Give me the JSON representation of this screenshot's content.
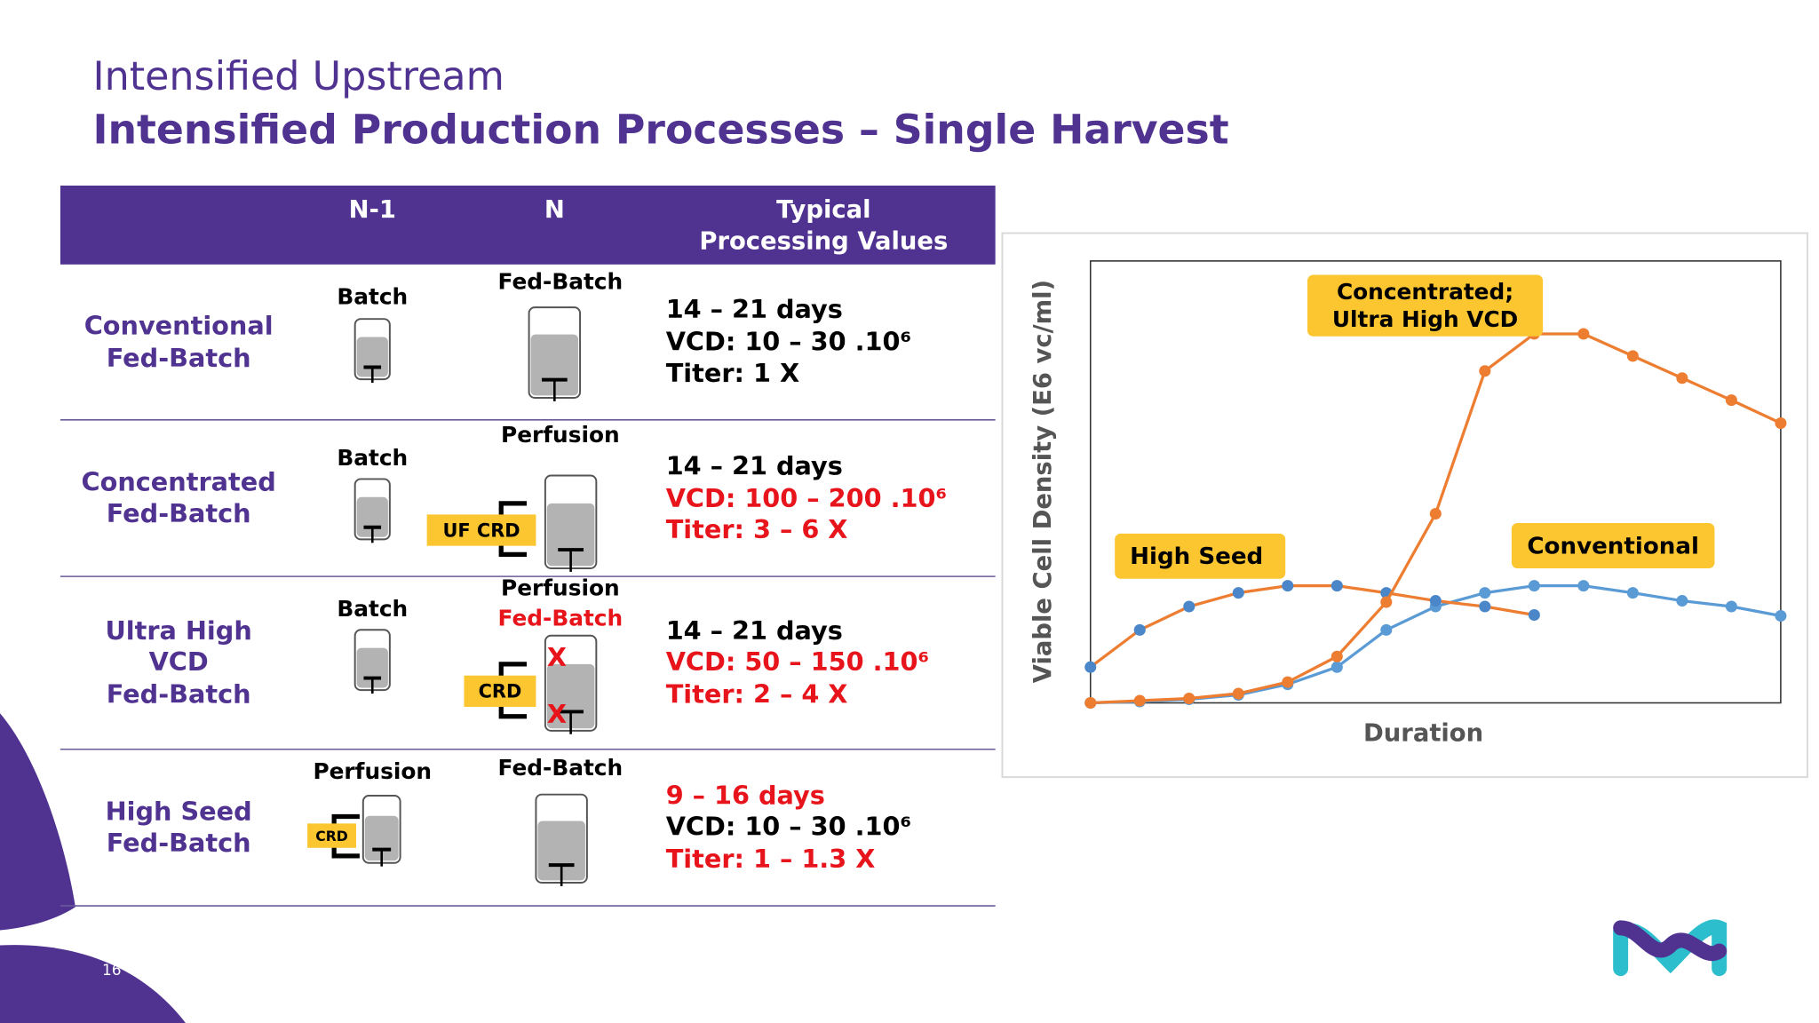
{
  "header": {
    "section": "Intensified Upstream",
    "title": "Intensified Production Processes – Single Harvest"
  },
  "table": {
    "columns": [
      "N-1",
      "N"
    ],
    "typical_header": [
      "Typical",
      "Processing Values"
    ],
    "rows": [
      {
        "label": [
          "Conventional",
          "Fed-Batch"
        ],
        "n1": [
          {
            "text": "Batch",
            "color": "#000000"
          }
        ],
        "n": [
          {
            "text": "Fed-Batch",
            "color": "#000000"
          }
        ],
        "values": [
          {
            "text": "14 – 21 days",
            "color": "#000000"
          },
          {
            "text": "VCD: 10 – 30 .10⁶",
            "color": "#000000"
          },
          {
            "text": "Titer: 1 X",
            "color": "#000000"
          }
        ]
      },
      {
        "label": [
          "Concentrated",
          "Fed-Batch"
        ],
        "n1": [
          {
            "text": "Batch",
            "color": "#000000"
          }
        ],
        "n": [
          {
            "text": "Perfusion",
            "color": "#000000"
          }
        ],
        "n_tag": "UF CRD",
        "values": [
          {
            "text": "14 – 21 days",
            "color": "#000000"
          },
          {
            "text": "VCD: 100 – 200 .10⁶",
            "color": "#e8141b"
          },
          {
            "text": "Titer: 3 – 6 X",
            "color": "#e8141b"
          }
        ]
      },
      {
        "label": [
          "Ultra High",
          "VCD",
          "Fed-Batch"
        ],
        "n1": [
          {
            "text": "Batch",
            "color": "#000000"
          }
        ],
        "n": [
          {
            "text": "Perfusion",
            "color": "#000000"
          },
          {
            "text": "Fed-Batch",
            "color": "#e8141b"
          }
        ],
        "n_tag": "CRD",
        "n_marks": [
          "X",
          "X"
        ],
        "values": [
          {
            "text": "14 – 21 days",
            "color": "#000000"
          },
          {
            "text": "VCD: 50 – 150 .10⁶",
            "color": "#e8141b"
          },
          {
            "text": "Titer: 2 – 4 X",
            "color": "#e8141b"
          }
        ]
      },
      {
        "label": [
          "High Seed",
          "Fed-Batch"
        ],
        "n1": [
          {
            "text": "Perfusion",
            "color": "#000000"
          }
        ],
        "n1_tag": "CRD",
        "n": [
          {
            "text": "Fed-Batch",
            "color": "#000000"
          }
        ],
        "values": [
          {
            "text": "9 – 16 days",
            "color": "#e8141b"
          },
          {
            "text": "VCD: 10 – 30 .10⁶",
            "color": "#000000"
          },
          {
            "text": "Titer: 1 – 1.3 X",
            "color": "#e8141b"
          }
        ]
      }
    ]
  },
  "chart_data": {
    "type": "line",
    "ylabel": "Viable Cell Density (E6 vc/ml)",
    "xlabel": "Duration",
    "x": [
      0,
      1,
      2,
      3,
      4,
      5,
      6,
      7,
      8,
      9,
      10,
      11,
      12,
      13,
      14
    ],
    "xlim": [
      0,
      14
    ],
    "ylim": [
      0,
      100
    ],
    "series": [
      {
        "color": "#5b9bd5",
        "marker_color": "#5b9bd5",
        "values": [
          0,
          0.3,
          0.8,
          1.8,
          4.2,
          8.1,
          16.5,
          21.8,
          24.9,
          26.5,
          26.5,
          24.9,
          23.1,
          21.8,
          19.7
        ]
      },
      {
        "color": "#ed7d31",
        "marker_color": "#4a86c8",
        "values": [
          8.1,
          16.5,
          21.8,
          24.9,
          26.5,
          26.5,
          24.9,
          23.1,
          21.8,
          19.9,
          null,
          null,
          null,
          null,
          null
        ]
      },
      {
        "color": "#ed7d31",
        "marker_color": "#ed7d31",
        "values": [
          0,
          0.5,
          1.0,
          2.1,
          4.7,
          10.5,
          22.8,
          42.8,
          75.1,
          83.5,
          83.5,
          78.5,
          73.5,
          68.5,
          63.3
        ]
      }
    ],
    "annotations": [
      {
        "lines": [
          "Concentrated;",
          "Ultra High VCD"
        ]
      },
      {
        "lines": [
          "High Seed"
        ]
      },
      {
        "lines": [
          "Conventional"
        ]
      }
    ]
  },
  "page_number": "16"
}
